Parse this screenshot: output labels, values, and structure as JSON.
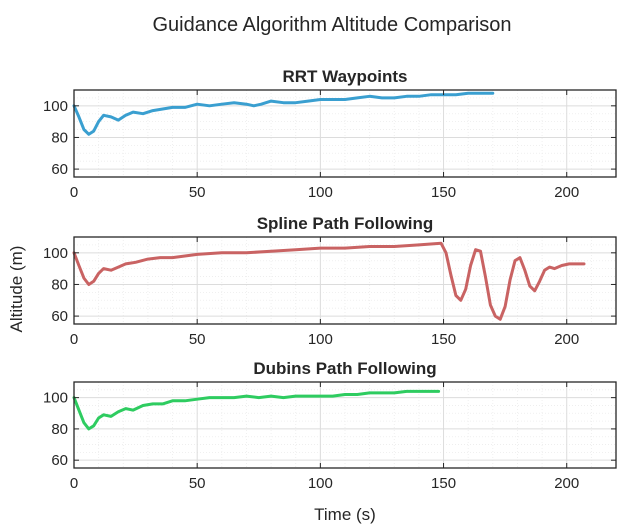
{
  "figure": {
    "title": "Guidance Algorithm Altitude Comparison",
    "xlabel": "Time (s)",
    "ylabel": "Altitude (m)"
  },
  "chart_data": [
    {
      "type": "line",
      "title": "RRT Waypoints",
      "xlim": [
        0,
        220
      ],
      "ylim": [
        55,
        110
      ],
      "xticks": [
        0,
        50,
        100,
        150,
        200
      ],
      "yticks": [
        60,
        80,
        100
      ],
      "grid": true,
      "color": "#3a9fd0",
      "series": [
        {
          "x": [
            0,
            2,
            4,
            6,
            8,
            10,
            12,
            15,
            18,
            21,
            24,
            28,
            32,
            36,
            40,
            45,
            50,
            55,
            60,
            65,
            70,
            73,
            76,
            80,
            85,
            90,
            95,
            100,
            105,
            110,
            115,
            120,
            125,
            130,
            135,
            140,
            145,
            150,
            155,
            160,
            165,
            170
          ],
          "y": [
            100,
            93,
            85,
            82,
            84,
            90,
            94,
            93,
            91,
            94,
            96,
            95,
            97,
            98,
            99,
            99,
            101,
            100,
            101,
            102,
            101,
            100,
            101,
            103,
            102,
            102,
            103,
            104,
            104,
            104,
            105,
            106,
            105,
            105,
            106,
            106,
            107,
            107,
            107,
            108,
            108,
            108
          ]
        }
      ]
    },
    {
      "type": "line",
      "title": "Spline Path Following",
      "xlim": [
        0,
        220
      ],
      "ylim": [
        55,
        110
      ],
      "xticks": [
        0,
        50,
        100,
        150,
        200
      ],
      "yticks": [
        60,
        80,
        100
      ],
      "grid": true,
      "color": "#c96363",
      "series": [
        {
          "x": [
            0,
            2,
            4,
            6,
            8,
            10,
            12,
            15,
            18,
            21,
            25,
            30,
            35,
            40,
            45,
            50,
            60,
            70,
            80,
            90,
            100,
            110,
            120,
            130,
            140,
            149,
            151,
            153,
            155,
            157,
            159,
            161,
            163,
            165,
            167,
            169,
            171,
            173,
            175,
            177,
            179,
            181,
            183,
            185,
            187,
            189,
            191,
            193,
            195,
            198,
            201,
            204,
            207
          ],
          "y": [
            100,
            92,
            84,
            80,
            82,
            87,
            90,
            89,
            91,
            93,
            94,
            96,
            97,
            97,
            98,
            99,
            100,
            100,
            101,
            102,
            103,
            103,
            104,
            104,
            105,
            106,
            100,
            86,
            73,
            70,
            77,
            92,
            102,
            101,
            85,
            67,
            60,
            58,
            66,
            83,
            95,
            97,
            89,
            79,
            76,
            82,
            89,
            91,
            90,
            92,
            93,
            93,
            93
          ]
        }
      ]
    },
    {
      "type": "line",
      "title": "Dubins Path Following",
      "xlim": [
        0,
        220
      ],
      "ylim": [
        55,
        110
      ],
      "xticks": [
        0,
        50,
        100,
        150,
        200
      ],
      "yticks": [
        60,
        80,
        100
      ],
      "grid": true,
      "color": "#2ecc60",
      "series": [
        {
          "x": [
            0,
            2,
            4,
            6,
            8,
            10,
            12,
            15,
            18,
            21,
            24,
            28,
            32,
            36,
            40,
            45,
            50,
            55,
            60,
            65,
            70,
            75,
            80,
            85,
            90,
            95,
            100,
            105,
            110,
            115,
            120,
            125,
            130,
            135,
            140,
            145,
            148
          ],
          "y": [
            100,
            92,
            84,
            80,
            82,
            87,
            89,
            88,
            91,
            93,
            92,
            95,
            96,
            96,
            98,
            98,
            99,
            100,
            100,
            100,
            101,
            100,
            101,
            100,
            101,
            101,
            101,
            101,
            102,
            102,
            103,
            103,
            103,
            104,
            104,
            104,
            104
          ]
        }
      ]
    }
  ]
}
